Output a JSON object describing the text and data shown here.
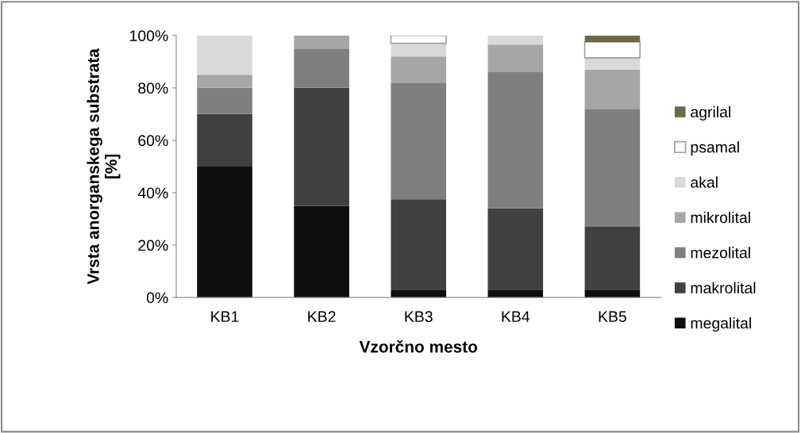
{
  "chart_data": {
    "type": "bar",
    "stacked": true,
    "xlabel": "Vzorčno mesto",
    "ylabel": "Vrsta anorganskega substrata\n[%]",
    "categories": [
      "KB1",
      "KB2",
      "KB3",
      "KB4",
      "KB5"
    ],
    "series": [
      {
        "name": "megalital",
        "color": "#0e0e0e",
        "values": [
          50,
          35,
          3,
          3,
          3
        ]
      },
      {
        "name": "makrolital",
        "color": "#404040",
        "values": [
          20,
          45,
          34.5,
          31,
          24
        ]
      },
      {
        "name": "mezolital",
        "color": "#7f7f7f",
        "values": [
          10,
          15,
          44.5,
          52,
          45
        ]
      },
      {
        "name": "mikrolital",
        "color": "#a6a6a6",
        "values": [
          5,
          5,
          10,
          10.5,
          15
        ]
      },
      {
        "name": "akal",
        "color": "#d9d9d9",
        "values": [
          15,
          0,
          5,
          3.5,
          4.5
        ]
      },
      {
        "name": "psamal",
        "color": "#ffffff",
        "values": [
          0,
          0,
          3,
          0,
          6
        ]
      },
      {
        "name": "agrilal",
        "color": "#6b6b4a",
        "values": [
          0,
          0,
          0,
          0,
          2.5
        ]
      }
    ],
    "ylim": [
      0,
      100
    ],
    "yticks": [
      {
        "value": 0,
        "label": "0%"
      },
      {
        "value": 20,
        "label": "20%"
      },
      {
        "value": 40,
        "label": "40%"
      },
      {
        "value": 60,
        "label": "60%"
      },
      {
        "value": 80,
        "label": "80%"
      },
      {
        "value": 100,
        "label": "100%"
      }
    ],
    "grid": false,
    "legend": "right"
  }
}
